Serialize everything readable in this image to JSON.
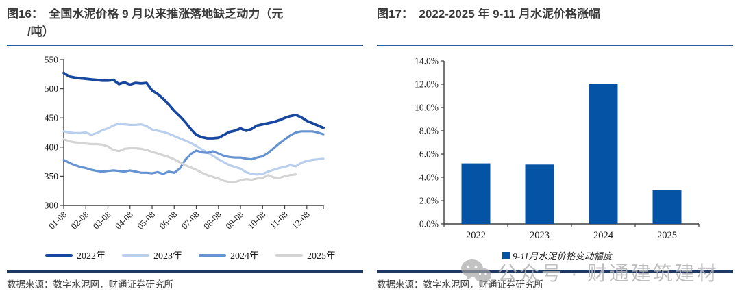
{
  "left_panel": {
    "title_line1": "图16：　全国水泥价格 9 月以来推涨落地缺乏动力（元",
    "title_line2": "/吨）",
    "source": "数据来源：数字水泥网，财通证券研究所"
  },
  "right_panel": {
    "title": "图17：　2022-2025 年 9-11 月水泥价格涨幅",
    "legend_label": "9-11月水泥价格变动幅度",
    "source": "数据来源：数字水泥网，财通证券研究所"
  },
  "watermark": {
    "icon": "wechat-icon",
    "text": "公众号 · 财通建筑建材"
  },
  "colors": {
    "title_rule": "#2b5da8",
    "bottom_rule": "#1f3864",
    "axis": "#3f3f3f",
    "bar": "#0553a5",
    "series_2022": "#17479e",
    "series_2023": "#b9cfec",
    "series_2024": "#6593d2",
    "series_2025": "#d4d4d4"
  },
  "chart_data": [
    {
      "type": "line",
      "title": "全国水泥价格（元/吨）",
      "x_ticks": [
        "01-08",
        "02-08",
        "03-08",
        "04-08",
        "05-08",
        "06-08",
        "07-08",
        "08-08",
        "09-08",
        "10-08",
        "11-08",
        "12-08"
      ],
      "points_per_month": 4,
      "ylim": [
        300,
        550
      ],
      "y_ticks": [
        300,
        350,
        400,
        450,
        500,
        550
      ],
      "grid": false,
      "legend_position": "bottom",
      "series": [
        {
          "name": "2022年",
          "color": "#17479e",
          "stroke_width": 3.8,
          "values": [
            527,
            521,
            519,
            518,
            517,
            516,
            515,
            514,
            514,
            515,
            508,
            511,
            507,
            510,
            509,
            510,
            497,
            491,
            483,
            473,
            462,
            453,
            443,
            431,
            421,
            417,
            415,
            415,
            416,
            421,
            426,
            428,
            432,
            428,
            431,
            437,
            439,
            441,
            443,
            446,
            450,
            453,
            455,
            451,
            445,
            441,
            437,
            433
          ]
        },
        {
          "name": "2023年",
          "color": "#b9cfec",
          "stroke_width": 3.2,
          "values": [
            427,
            425,
            424,
            424,
            425,
            421,
            424,
            429,
            432,
            437,
            440,
            439,
            438,
            438,
            439,
            436,
            430,
            428,
            426,
            423,
            419,
            415,
            411,
            407,
            402,
            396,
            391,
            385,
            379,
            374,
            369,
            366,
            363,
            357,
            354,
            353,
            354,
            358,
            361,
            364,
            366,
            369,
            367,
            373,
            376,
            378,
            379,
            380
          ]
        },
        {
          "name": "2024年",
          "color": "#6593d2",
          "stroke_width": 3.2,
          "values": [
            378,
            373,
            369,
            366,
            364,
            361,
            359,
            358,
            359,
            360,
            359,
            358,
            360,
            358,
            356,
            356,
            355,
            357,
            354,
            358,
            356,
            363,
            378,
            388,
            394,
            391,
            390,
            393,
            389,
            385,
            383,
            382,
            382,
            380,
            379,
            382,
            384,
            390,
            398,
            406,
            413,
            420,
            425,
            427,
            427,
            427,
            425,
            422
          ]
        },
        {
          "name": "2025年",
          "color": "#d4d4d4",
          "stroke_width": 3.2,
          "values": [
            413,
            410,
            408,
            407,
            406,
            405,
            405,
            404,
            401,
            395,
            393,
            397,
            398,
            398,
            397,
            395,
            392,
            389,
            386,
            383,
            379,
            374,
            369,
            365,
            361,
            356,
            352,
            349,
            346,
            342,
            340,
            340,
            343,
            345,
            344,
            346,
            347,
            352,
            348,
            347,
            350,
            352,
            353
          ]
        }
      ]
    },
    {
      "type": "bar",
      "categories": [
        "2022",
        "2023",
        "2024",
        "2025"
      ],
      "values": [
        5.2,
        5.1,
        12.0,
        2.9
      ],
      "ylim": [
        0,
        14
      ],
      "y_tick_labels": [
        "0.0%",
        "2.0%",
        "4.0%",
        "6.0%",
        "8.0%",
        "10.0%",
        "12.0%",
        "14.0%"
      ],
      "grid": false,
      "legend": "9-11月水泥价格变动幅度",
      "bar_color": "#0553a5"
    }
  ]
}
